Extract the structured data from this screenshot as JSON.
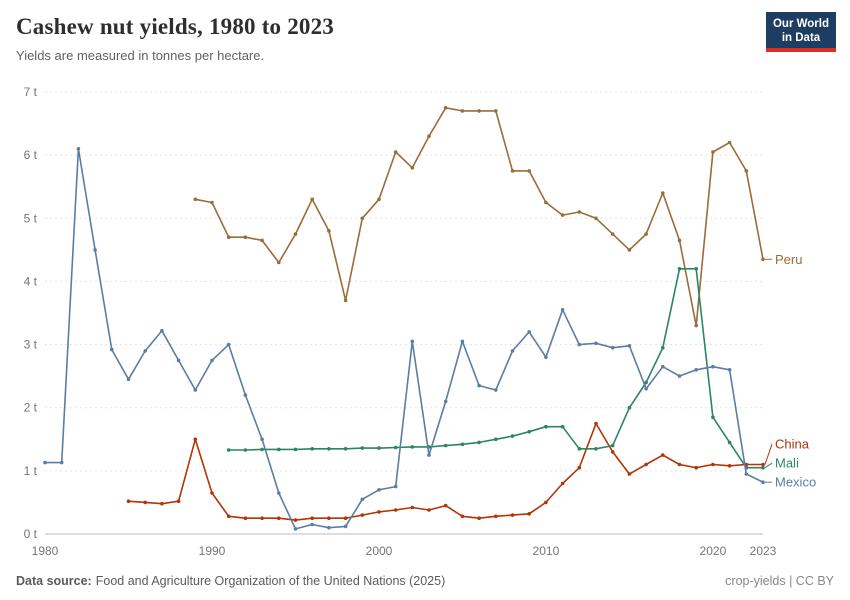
{
  "header": {
    "title": "Cashew nut yields, 1980 to 2023",
    "subtitle": "Yields are measured in tonnes per hectare.",
    "logo": {
      "line1": "Our World",
      "line2": "in Data",
      "bg": "#1d3d63",
      "accent": "#dc2e21"
    }
  },
  "footer": {
    "source_label": "Data source:",
    "source_text": "Food and Agriculture Organization of the United Nations (2025)",
    "right_text": "crop-yields | CC BY"
  },
  "chart_data": {
    "type": "line",
    "title": "Cashew nut yields, 1980 to 2023",
    "ylabel": "tonnes per hectare",
    "y_tick_suffix": " t",
    "x_range": [
      1980,
      2023
    ],
    "y_range": [
      0,
      7
    ],
    "y_ticks": [
      0,
      1,
      2,
      3,
      4,
      5,
      6,
      7
    ],
    "x_ticks": [
      1980,
      1990,
      2000,
      2010,
      2020,
      2023
    ],
    "grid": "horizontal-dashed",
    "legend_position": "right-end-labels",
    "series": [
      {
        "name": "Peru",
        "color": "#996D39",
        "start_year": 1989,
        "values": [
          5.3,
          5.25,
          4.7,
          4.7,
          4.65,
          4.3,
          4.75,
          5.3,
          4.8,
          3.7,
          5.0,
          5.3,
          6.05,
          5.8,
          6.3,
          6.75,
          6.7,
          6.7,
          6.7,
          5.75,
          5.75,
          5.25,
          5.05,
          5.1,
          5.0,
          4.75,
          4.5,
          4.75,
          5.4,
          4.65,
          3.3,
          6.05,
          6.2,
          5.75,
          4.35
        ]
      },
      {
        "name": "China",
        "color": "#B13507",
        "start_year": 1985,
        "values": [
          0.52,
          0.5,
          0.48,
          0.52,
          1.5,
          0.65,
          0.28,
          0.25,
          0.25,
          0.25,
          0.22,
          0.25,
          0.25,
          0.25,
          0.3,
          0.35,
          0.38,
          0.42,
          0.38,
          0.45,
          0.28,
          0.25,
          0.28,
          0.3,
          0.32,
          0.5,
          0.8,
          1.05,
          1.75,
          1.3,
          0.95,
          1.1,
          1.25,
          1.1,
          1.05,
          1.1,
          1.08,
          1.1,
          1.1
        ]
      },
      {
        "name": "Mali",
        "color": "#2C8465",
        "start_year": 1991,
        "values": [
          1.33,
          1.33,
          1.34,
          1.34,
          1.34,
          1.35,
          1.35,
          1.35,
          1.36,
          1.36,
          1.37,
          1.38,
          1.38,
          1.4,
          1.42,
          1.45,
          1.5,
          1.55,
          1.62,
          1.7,
          1.7,
          1.35,
          1.35,
          1.4,
          2.0,
          2.4,
          2.95,
          4.2,
          4.2,
          1.85,
          1.45,
          1.05,
          1.05
        ]
      },
      {
        "name": "Mexico",
        "color": "#5B7DA5",
        "start_year": 1980,
        "values": [
          1.13,
          1.13,
          6.1,
          4.5,
          2.92,
          2.45,
          2.9,
          3.22,
          2.75,
          2.28,
          2.75,
          3.0,
          2.2,
          1.5,
          0.65,
          0.08,
          0.15,
          0.1,
          0.12,
          0.55,
          0.7,
          0.75,
          3.05,
          1.25,
          2.1,
          3.05,
          2.35,
          2.28,
          2.9,
          3.2,
          2.8,
          3.55,
          3.0,
          3.02,
          2.95,
          2.98,
          2.3,
          2.65,
          2.5,
          2.6,
          2.65,
          2.6,
          0.95,
          0.82
        ]
      }
    ]
  }
}
